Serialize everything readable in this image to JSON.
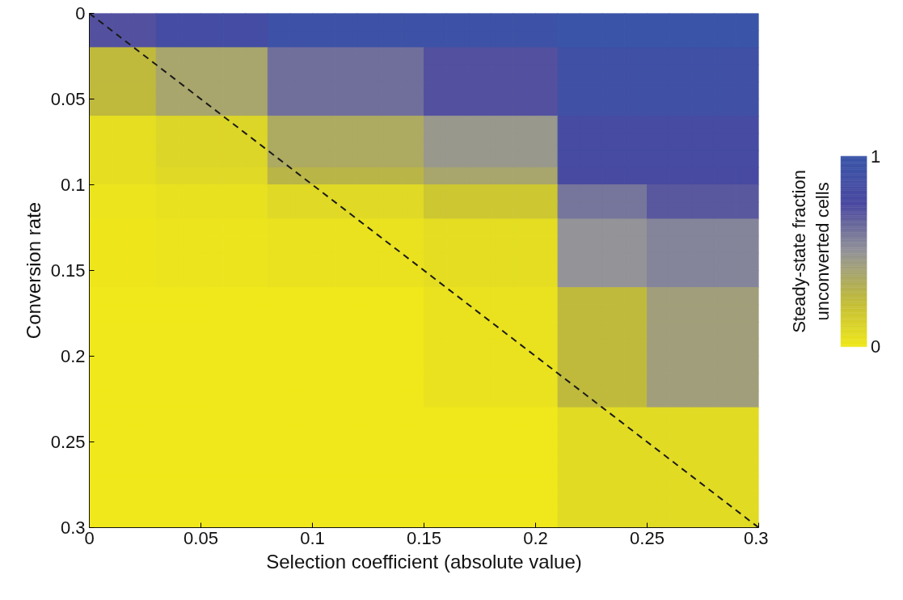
{
  "chart_data": {
    "type": "heatmap",
    "xlabel": "Selection coefficient (absolute value)",
    "ylabel": "Conversion rate",
    "clabel": "Steady-state fraction\nunconverted cells",
    "cells": [
      [
        0.72,
        0.72,
        0.72,
        0.85,
        0.85,
        0.85,
        0.85,
        0.85,
        0.95,
        0.95,
        0.95,
        0.95,
        0.95,
        0.95,
        0.95,
        0.95,
        0.95,
        0.95,
        0.95,
        0.95,
        0.95,
        1,
        1,
        1,
        1,
        1,
        1,
        1,
        1,
        1
      ],
      [
        0.72,
        0.72,
        0.72,
        0.85,
        0.85,
        0.85,
        0.85,
        0.85,
        0.95,
        0.95,
        0.95,
        0.95,
        0.95,
        0.95,
        0.95,
        0.95,
        0.95,
        0.95,
        0.95,
        0.95,
        0.95,
        1,
        1,
        1,
        1,
        1,
        1,
        1,
        1,
        1
      ],
      [
        0.25,
        0.25,
        0.25,
        0.38,
        0.38,
        0.38,
        0.38,
        0.38,
        0.62,
        0.62,
        0.62,
        0.62,
        0.62,
        0.62,
        0.62,
        0.72,
        0.72,
        0.72,
        0.72,
        0.72,
        0.72,
        0.9,
        0.9,
        0.9,
        0.9,
        0.9,
        0.9,
        0.9,
        0.9,
        0.9
      ],
      [
        0.25,
        0.25,
        0.25,
        0.38,
        0.38,
        0.38,
        0.38,
        0.38,
        0.62,
        0.62,
        0.62,
        0.62,
        0.62,
        0.62,
        0.62,
        0.72,
        0.72,
        0.72,
        0.72,
        0.72,
        0.72,
        0.9,
        0.9,
        0.9,
        0.9,
        0.9,
        0.9,
        0.9,
        0.9,
        0.9
      ],
      [
        0.25,
        0.25,
        0.25,
        0.38,
        0.38,
        0.38,
        0.38,
        0.38,
        0.62,
        0.62,
        0.62,
        0.62,
        0.62,
        0.62,
        0.62,
        0.72,
        0.72,
        0.72,
        0.72,
        0.72,
        0.72,
        0.9,
        0.9,
        0.9,
        0.9,
        0.9,
        0.9,
        0.9,
        0.9,
        0.9
      ],
      [
        0.25,
        0.25,
        0.25,
        0.38,
        0.38,
        0.38,
        0.38,
        0.38,
        0.62,
        0.62,
        0.62,
        0.62,
        0.62,
        0.62,
        0.62,
        0.72,
        0.72,
        0.72,
        0.72,
        0.72,
        0.72,
        0.9,
        0.9,
        0.9,
        0.9,
        0.9,
        0.9,
        0.9,
        0.9,
        0.9
      ],
      [
        0.05,
        0.05,
        0.05,
        0.1,
        0.1,
        0.1,
        0.1,
        0.1,
        0.35,
        0.35,
        0.35,
        0.35,
        0.35,
        0.35,
        0.35,
        0.47,
        0.47,
        0.47,
        0.47,
        0.47,
        0.47,
        0.8,
        0.8,
        0.8,
        0.8,
        0.8,
        0.8,
        0.8,
        0.8,
        0.8
      ],
      [
        0.05,
        0.05,
        0.05,
        0.1,
        0.1,
        0.1,
        0.1,
        0.1,
        0.35,
        0.35,
        0.35,
        0.35,
        0.35,
        0.35,
        0.35,
        0.47,
        0.47,
        0.47,
        0.47,
        0.47,
        0.47,
        0.8,
        0.8,
        0.8,
        0.8,
        0.8,
        0.8,
        0.8,
        0.8,
        0.8
      ],
      [
        0.05,
        0.05,
        0.05,
        0.1,
        0.1,
        0.1,
        0.1,
        0.1,
        0.35,
        0.35,
        0.35,
        0.35,
        0.35,
        0.35,
        0.35,
        0.47,
        0.47,
        0.47,
        0.47,
        0.47,
        0.47,
        0.8,
        0.8,
        0.8,
        0.8,
        0.8,
        0.8,
        0.8,
        0.8,
        0.8
      ],
      [
        0.05,
        0.05,
        0.05,
        0.08,
        0.08,
        0.08,
        0.08,
        0.08,
        0.28,
        0.28,
        0.28,
        0.28,
        0.28,
        0.28,
        0.28,
        0.38,
        0.38,
        0.38,
        0.38,
        0.38,
        0.38,
        0.78,
        0.78,
        0.78,
        0.78,
        0.78,
        0.78,
        0.78,
        0.78,
        0.78
      ],
      [
        0.02,
        0.02,
        0.02,
        0.04,
        0.04,
        0.04,
        0.04,
        0.04,
        0.08,
        0.08,
        0.08,
        0.08,
        0.08,
        0.08,
        0.08,
        0.18,
        0.18,
        0.18,
        0.18,
        0.18,
        0.18,
        0.6,
        0.6,
        0.6,
        0.6,
        0.7,
        0.7,
        0.7,
        0.7,
        0.7
      ],
      [
        0.02,
        0.02,
        0.02,
        0.04,
        0.04,
        0.04,
        0.04,
        0.04,
        0.08,
        0.08,
        0.08,
        0.08,
        0.08,
        0.08,
        0.08,
        0.18,
        0.18,
        0.18,
        0.18,
        0.18,
        0.18,
        0.6,
        0.6,
        0.6,
        0.6,
        0.7,
        0.7,
        0.7,
        0.7,
        0.7
      ],
      [
        0.01,
        0.01,
        0.01,
        0.02,
        0.02,
        0.02,
        0.02,
        0.02,
        0.03,
        0.03,
        0.03,
        0.03,
        0.03,
        0.03,
        0.03,
        0.06,
        0.06,
        0.06,
        0.06,
        0.06,
        0.06,
        0.5,
        0.5,
        0.5,
        0.5,
        0.55,
        0.55,
        0.55,
        0.55,
        0.55
      ],
      [
        0.01,
        0.01,
        0.01,
        0.02,
        0.02,
        0.02,
        0.02,
        0.02,
        0.03,
        0.03,
        0.03,
        0.03,
        0.03,
        0.03,
        0.03,
        0.06,
        0.06,
        0.06,
        0.06,
        0.06,
        0.06,
        0.5,
        0.5,
        0.5,
        0.5,
        0.55,
        0.55,
        0.55,
        0.55,
        0.55
      ],
      [
        0.01,
        0.01,
        0.01,
        0.02,
        0.02,
        0.02,
        0.02,
        0.02,
        0.03,
        0.03,
        0.03,
        0.03,
        0.03,
        0.03,
        0.03,
        0.06,
        0.06,
        0.06,
        0.06,
        0.06,
        0.06,
        0.5,
        0.5,
        0.5,
        0.5,
        0.55,
        0.55,
        0.55,
        0.55,
        0.55
      ],
      [
        0.01,
        0.01,
        0.01,
        0.02,
        0.02,
        0.02,
        0.02,
        0.02,
        0.03,
        0.03,
        0.03,
        0.03,
        0.03,
        0.03,
        0.03,
        0.06,
        0.06,
        0.06,
        0.06,
        0.06,
        0.06,
        0.5,
        0.5,
        0.5,
        0.5,
        0.55,
        0.55,
        0.55,
        0.55,
        0.55
      ],
      [
        0,
        0,
        0,
        0,
        0,
        0,
        0,
        0,
        0,
        0,
        0,
        0,
        0,
        0,
        0,
        0.03,
        0.03,
        0.03,
        0.03,
        0.03,
        0.03,
        0.25,
        0.25,
        0.25,
        0.25,
        0.42,
        0.42,
        0.42,
        0.42,
        0.42
      ],
      [
        0,
        0,
        0,
        0,
        0,
        0,
        0,
        0,
        0,
        0,
        0,
        0,
        0,
        0,
        0,
        0.03,
        0.03,
        0.03,
        0.03,
        0.03,
        0.03,
        0.25,
        0.25,
        0.25,
        0.25,
        0.42,
        0.42,
        0.42,
        0.42,
        0.42
      ],
      [
        0,
        0,
        0,
        0,
        0,
        0,
        0,
        0,
        0,
        0,
        0,
        0,
        0,
        0,
        0,
        0.03,
        0.03,
        0.03,
        0.03,
        0.03,
        0.03,
        0.25,
        0.25,
        0.25,
        0.25,
        0.42,
        0.42,
        0.42,
        0.42,
        0.42
      ],
      [
        0,
        0,
        0,
        0,
        0,
        0,
        0,
        0,
        0,
        0,
        0,
        0,
        0,
        0,
        0,
        0.03,
        0.03,
        0.03,
        0.03,
        0.03,
        0.03,
        0.25,
        0.25,
        0.25,
        0.25,
        0.42,
        0.42,
        0.42,
        0.42,
        0.42
      ],
      [
        0,
        0,
        0,
        0,
        0,
        0,
        0,
        0,
        0,
        0,
        0,
        0,
        0,
        0,
        0,
        0.03,
        0.03,
        0.03,
        0.03,
        0.03,
        0.03,
        0.25,
        0.25,
        0.25,
        0.25,
        0.42,
        0.42,
        0.42,
        0.42,
        0.42
      ],
      [
        0,
        0,
        0,
        0,
        0,
        0,
        0,
        0,
        0,
        0,
        0,
        0,
        0,
        0,
        0,
        0.03,
        0.03,
        0.03,
        0.03,
        0.03,
        0.03,
        0.25,
        0.25,
        0.25,
        0.25,
        0.42,
        0.42,
        0.42,
        0.42,
        0.42
      ],
      [
        0,
        0,
        0,
        0,
        0,
        0,
        0,
        0,
        0,
        0,
        0,
        0,
        0,
        0,
        0,
        0.03,
        0.03,
        0.03,
        0.03,
        0.03,
        0.03,
        0.25,
        0.25,
        0.25,
        0.25,
        0.42,
        0.42,
        0.42,
        0.42,
        0.42
      ],
      [
        0,
        0,
        0,
        0,
        0,
        0,
        0,
        0,
        0,
        0,
        0,
        0,
        0,
        0,
        0,
        0,
        0,
        0,
        0,
        0,
        0,
        0.07,
        0.07,
        0.07,
        0.07,
        0.07,
        0.07,
        0.07,
        0.07,
        0.07
      ],
      [
        0,
        0,
        0,
        0,
        0,
        0,
        0,
        0,
        0,
        0,
        0,
        0,
        0,
        0,
        0,
        0,
        0,
        0,
        0,
        0,
        0,
        0.07,
        0.07,
        0.07,
        0.07,
        0.07,
        0.07,
        0.07,
        0.07,
        0.07
      ],
      [
        0,
        0,
        0,
        0,
        0,
        0,
        0,
        0,
        0,
        0,
        0,
        0,
        0,
        0,
        0,
        0,
        0,
        0,
        0,
        0,
        0,
        0.07,
        0.07,
        0.07,
        0.07,
        0.07,
        0.07,
        0.07,
        0.07,
        0.07
      ],
      [
        0,
        0,
        0,
        0,
        0,
        0,
        0,
        0,
        0,
        0,
        0,
        0,
        0,
        0,
        0,
        0,
        0,
        0,
        0,
        0,
        0,
        0.07,
        0.07,
        0.07,
        0.07,
        0.07,
        0.07,
        0.07,
        0.07,
        0.07
      ],
      [
        0,
        0,
        0,
        0,
        0,
        0,
        0,
        0,
        0,
        0,
        0,
        0,
        0,
        0,
        0,
        0,
        0,
        0,
        0,
        0,
        0,
        0.07,
        0.07,
        0.07,
        0.07,
        0.07,
        0.07,
        0.07,
        0.07,
        0.07
      ],
      [
        0,
        0,
        0,
        0,
        0,
        0,
        0,
        0,
        0,
        0,
        0,
        0,
        0,
        0,
        0,
        0,
        0,
        0,
        0,
        0,
        0,
        0.07,
        0.07,
        0.07,
        0.07,
        0.07,
        0.07,
        0.07,
        0.07,
        0.07
      ],
      [
        0,
        0,
        0,
        0,
        0,
        0,
        0,
        0,
        0,
        0,
        0,
        0,
        0,
        0,
        0,
        0,
        0,
        0,
        0,
        0,
        0,
        0.07,
        0.07,
        0.07,
        0.07,
        0.07,
        0.07,
        0.07,
        0.07,
        0.07
      ]
    ],
    "colors": [
      "#f0e81a",
      "#bfba3c",
      "#939398",
      "#4a48a0",
      "#3a55a8"
    ],
    "clim": [
      0,
      1
    ],
    "cticks": [
      0,
      1
    ],
    "xlim": [
      0,
      0.3
    ],
    "ylim": [
      0.3,
      0
    ],
    "xticks": [
      0,
      0.05,
      0.1,
      0.15,
      0.2,
      0.25,
      0.3
    ],
    "yticks": [
      0,
      0.05,
      0.1,
      0.15,
      0.2,
      0.25,
      0.3
    ],
    "series": [
      {
        "type": "line",
        "x": [
          0,
          0.3
        ],
        "values": [
          0,
          0.3
        ],
        "color": "#1a1a1a",
        "line_style": "dashed"
      }
    ]
  }
}
